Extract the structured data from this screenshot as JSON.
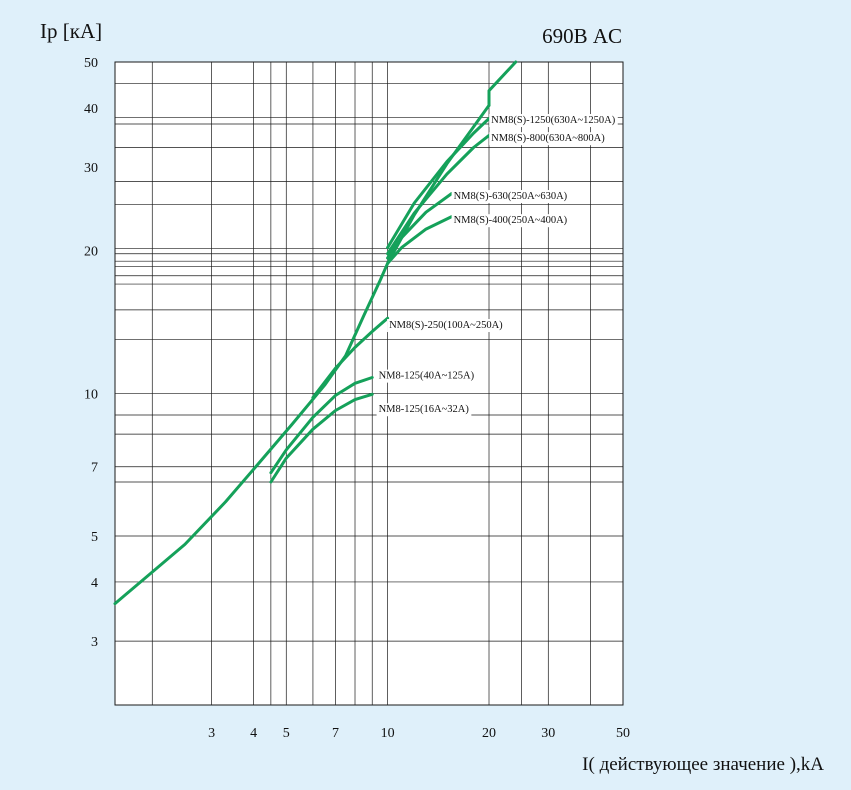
{
  "chart_data": {
    "type": "line",
    "title": "690В AC",
    "ylabel": "Ip [кА]",
    "xlabel": "I( действующее значение ),kA",
    "x_scale": "log",
    "y_scale": "log",
    "xlim": [
      1.55,
      50
    ],
    "ylim": [
      2.2,
      50
    ],
    "x_ticks": [
      3,
      4,
      5,
      7,
      10,
      20,
      30,
      50
    ],
    "y_ticks": [
      3,
      4,
      5,
      7,
      10,
      20,
      30,
      40,
      50
    ],
    "x_grid": [
      2,
      3,
      4,
      4.5,
      5,
      6,
      7,
      8,
      9,
      10,
      20,
      25,
      30,
      40,
      50
    ],
    "y_grid": [
      3,
      4,
      5,
      6.5,
      7,
      8.2,
      9,
      10,
      13,
      15,
      17,
      17.7,
      18.5,
      19,
      19.7,
      20.2,
      25,
      28,
      33,
      37,
      38.2,
      45
    ],
    "color": "#15a15a",
    "grid_color": "#1a1a1a",
    "background": "#ffffff",
    "series": [
      {
        "name": "",
        "x": [
          1.55,
          2.5,
          3.3,
          4.2,
          5.2,
          6.5,
          7.5,
          8.5,
          9.5,
          10,
          12,
          15,
          18,
          20
        ],
        "y": [
          3.6,
          4.8,
          5.9,
          7.2,
          8.6,
          10.4,
          12.0,
          14.6,
          17.3,
          18.8,
          23.8,
          30.5,
          36.5,
          40.5
        ]
      },
      {
        "name": "",
        "x": [
          20,
          20,
          24
        ],
        "y": [
          40.5,
          43.5,
          50
        ]
      },
      {
        "name": "NM8-125(16A~32A)",
        "x": [
          4.5,
          5,
          6,
          7,
          8,
          9
        ],
        "y": [
          6.5,
          7.3,
          8.4,
          9.2,
          9.7,
          9.95
        ],
        "label_at": [
          9.4,
          9.3
        ]
      },
      {
        "name": "NM8-125(40A~125A)",
        "x": [
          4.5,
          5,
          6,
          7,
          8,
          9
        ],
        "y": [
          6.8,
          7.6,
          8.9,
          9.9,
          10.5,
          10.8
        ],
        "label_at": [
          9.4,
          10.95
        ]
      },
      {
        "name": "NM8(S)-250(100A~250A)",
        "x": [
          6,
          7,
          8,
          9,
          10
        ],
        "y": [
          9.8,
          11.3,
          12.5,
          13.5,
          14.4
        ],
        "label_at": [
          10.1,
          14.0
        ]
      },
      {
        "name": "NM8(S)-400(250A~400A)",
        "x": [
          10,
          11,
          13,
          15.5
        ],
        "y": [
          18.8,
          20.3,
          22.2,
          23.6
        ],
        "label_at": [
          15.7,
          23.3
        ]
      },
      {
        "name": "NM8(S)-630(250A~630A)",
        "x": [
          10,
          11,
          13,
          15.5
        ],
        "y": [
          19.3,
          21.3,
          24.1,
          26.4
        ],
        "label_at": [
          15.7,
          26.2
        ]
      },
      {
        "name": "NM8(S)-800(630A~800A)",
        "x": [
          10,
          12,
          15,
          18,
          20
        ],
        "y": [
          19.7,
          24.0,
          29.0,
          33.0,
          35.0
        ],
        "label_at": [
          20.3,
          34.7
        ]
      },
      {
        "name": "NM8(S)-1250(630A~1250A)",
        "x": [
          10,
          12,
          15,
          18,
          20
        ],
        "y": [
          20.3,
          25.2,
          30.8,
          35.4,
          38.0
        ],
        "label_at": [
          20.3,
          37.9
        ]
      }
    ]
  }
}
